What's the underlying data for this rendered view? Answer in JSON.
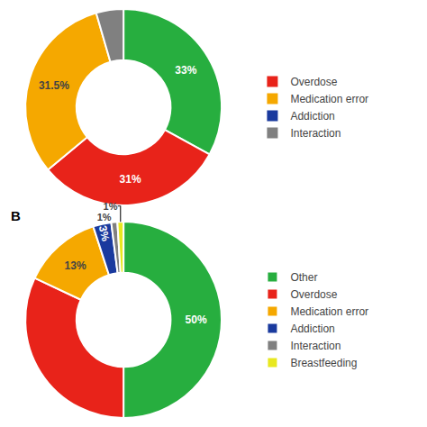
{
  "chart_data": [
    {
      "type": "pie",
      "values": [
        33,
        31,
        31.5,
        4.5
      ],
      "value_labels": [
        "33%",
        "31%",
        "31.5%",
        null
      ],
      "colors": [
        "#27ae3f",
        "#e8231a",
        "#f5a800",
        "#808080"
      ],
      "data_labels": true,
      "series": [
        {
          "name": "Overdose",
          "color": "#e8231a"
        },
        {
          "name": "Medication error",
          "color": "#f5a800"
        },
        {
          "name": "Addiction",
          "color": "#1a3a9e"
        },
        {
          "name": "Interaction",
          "color": "#808080"
        }
      ],
      "legend": "right"
    },
    {
      "type": "pie",
      "categories": [
        "Other",
        "Overdose",
        "Medication error",
        "Addiction",
        "Interaction",
        "Breastfeeding"
      ],
      "values": [
        50,
        32,
        13,
        3,
        1,
        1
      ],
      "value_labels": [
        "50%",
        null,
        "13%",
        "3%",
        "1%",
        "1%"
      ],
      "colors": [
        "#27ae3f",
        "#e8231a",
        "#f5a800",
        "#1a3a9e",
        "#808080",
        "#e8e820"
      ],
      "data_labels": true,
      "legend": "right",
      "annotations": [
        "B"
      ]
    }
  ]
}
